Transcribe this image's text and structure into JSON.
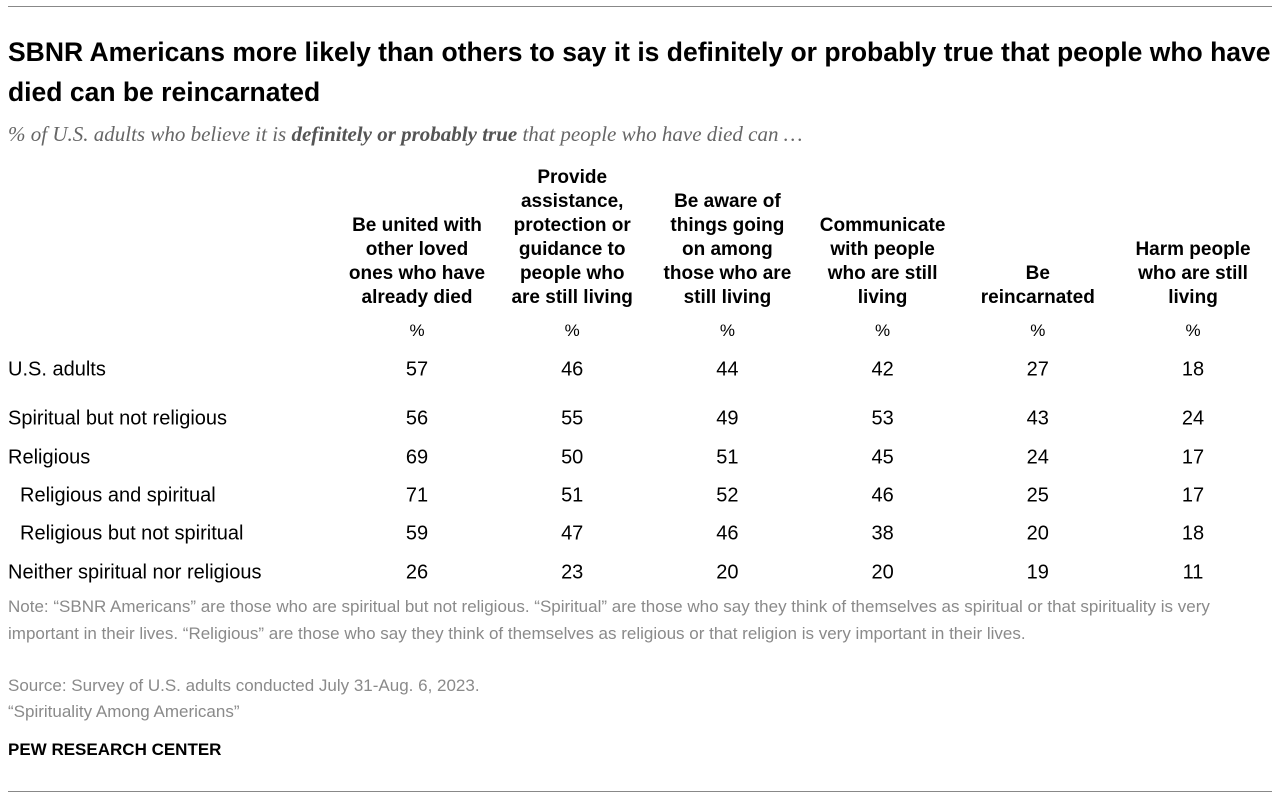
{
  "header": {
    "title": "SBNR Americans more likely than others to say it is definitely or probably true that people who have died can be reincarnated",
    "subtitle": [
      "% of U.S. adults who believe it is ",
      "definitely or probably true",
      " that people who have died can …"
    ]
  },
  "table": {
    "columns": [
      [
        "Be united with",
        "other loved",
        "ones who have",
        "already died"
      ],
      [
        "Provide",
        "assistance,",
        "protection or",
        "guidance to",
        "people who",
        "are still living"
      ],
      [
        "Be aware of",
        "things going",
        "on among",
        "those who are",
        "still living"
      ],
      [
        "Communicate",
        "with people",
        "who are still",
        "living"
      ],
      [
        "Be",
        "reincarnated"
      ],
      [
        "Harm people",
        "who are still",
        "living"
      ]
    ],
    "units": [
      "%",
      "%",
      "%",
      "%",
      "%",
      "%"
    ],
    "rows": [
      {
        "label": "U.S. adults",
        "indent": false,
        "values": [
          57,
          46,
          44,
          42,
          27,
          18
        ]
      },
      {
        "label": "Spiritual but not religious",
        "indent": false,
        "values": [
          56,
          55,
          49,
          53,
          43,
          24
        ]
      },
      {
        "label": "Religious",
        "indent": false,
        "values": [
          69,
          50,
          51,
          45,
          24,
          17
        ]
      },
      {
        "label": "Religious and spiritual",
        "indent": true,
        "values": [
          71,
          51,
          52,
          46,
          25,
          17
        ]
      },
      {
        "label": "Religious but not spiritual",
        "indent": true,
        "values": [
          59,
          47,
          46,
          38,
          20,
          18
        ]
      },
      {
        "label": "Neither spiritual nor religious",
        "indent": false,
        "values": [
          26,
          23,
          20,
          20,
          19,
          11
        ]
      }
    ]
  },
  "footer": {
    "note": "Note: “SBNR Americans” are those who are spiritual but not religious. “Spiritual” are those who say they think of themselves as spiritual or that spirituality is very important in their lives. “Religious” are those who say they think of themselves as religious or that religion is very important in their lives.",
    "source": "Source: Survey of U.S. adults conducted July 31-Aug. 6, 2023.",
    "report": "“Spirituality Among Americans”",
    "brand": "PEW RESEARCH CENTER"
  }
}
